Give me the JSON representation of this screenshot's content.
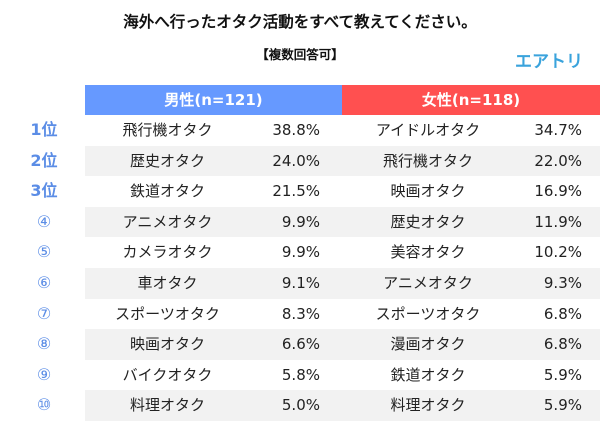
{
  "chart_data": {
    "type": "table",
    "title": "海外へ行ったオタク活動をすべて教えてください。",
    "subtitle": "【複数回答可】",
    "brand": "エアトリ",
    "columns": [
      {
        "name": "男性(n=121)",
        "color": "#6699ff"
      },
      {
        "name": "女性(n=118)",
        "color": "#ff5050"
      }
    ],
    "rows": [
      {
        "rank": "1位",
        "male_item": "飛行機オタク",
        "male_value": "38.8%",
        "female_item": "アイドルオタク",
        "female_value": "34.7%"
      },
      {
        "rank": "2位",
        "male_item": "歴史オタク",
        "male_value": "24.0%",
        "female_item": "飛行機オタク",
        "female_value": "22.0%"
      },
      {
        "rank": "3位",
        "male_item": "鉄道オタク",
        "male_value": "21.5%",
        "female_item": "映画オタク",
        "female_value": "16.9%"
      },
      {
        "rank": "④",
        "male_item": "アニメオタク",
        "male_value": "9.9%",
        "female_item": "歴史オタク",
        "female_value": "11.9%"
      },
      {
        "rank": "⑤",
        "male_item": "カメラオタク",
        "male_value": "9.9%",
        "female_item": "美容オタク",
        "female_value": "10.2%"
      },
      {
        "rank": "⑥",
        "male_item": "車オタク",
        "male_value": "9.1%",
        "female_item": "アニメオタク",
        "female_value": "9.3%"
      },
      {
        "rank": "⑦",
        "male_item": "スポーツオタク",
        "male_value": "8.3%",
        "female_item": "スポーツオタク",
        "female_value": "6.8%"
      },
      {
        "rank": "⑧",
        "male_item": "映画オタク",
        "male_value": "6.6%",
        "female_item": "漫画オタク",
        "female_value": "6.8%"
      },
      {
        "rank": "⑨",
        "male_item": "バイクオタク",
        "male_value": "5.8%",
        "female_item": "鉄道オタク",
        "female_value": "5.9%"
      },
      {
        "rank": "⑩",
        "male_item": "料理オタク",
        "male_value": "5.0%",
        "female_item": "料理オタク",
        "female_value": "5.9%"
      }
    ]
  }
}
